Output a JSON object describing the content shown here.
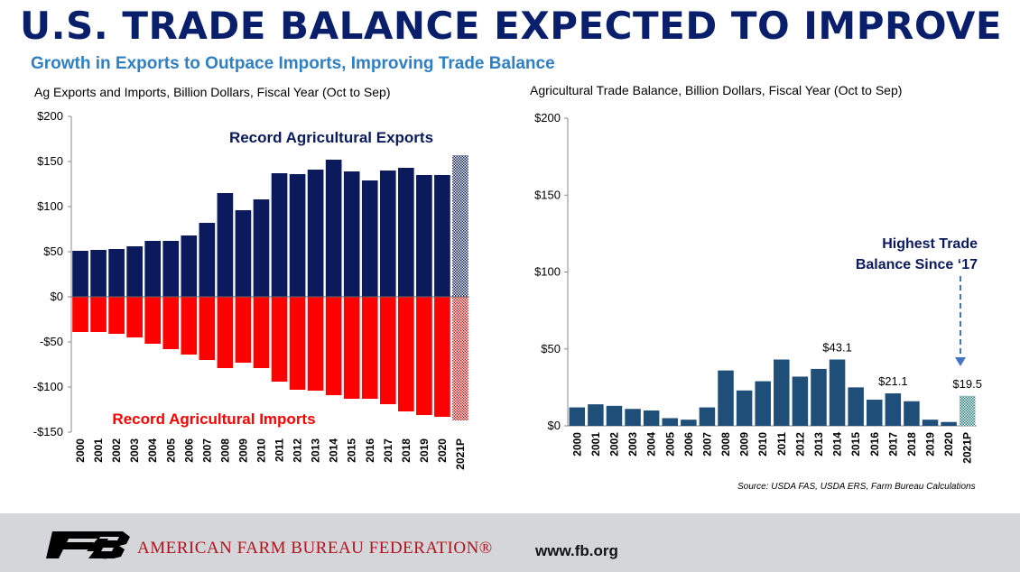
{
  "header": {
    "title": "U.S. TRADE BALANCE EXPECTED TO IMPROVE",
    "subtitle": "Growth in Exports to Outpace Imports, Improving Trade Balance"
  },
  "chart_data": [
    {
      "type": "bar",
      "title": "Ag Exports and Imports, Billion Dollars, Fiscal Year (Oct to Sep)",
      "categories": [
        "2000",
        "2001",
        "2002",
        "2003",
        "2004",
        "2005",
        "2006",
        "2007",
        "2008",
        "2009",
        "2010",
        "2011",
        "2012",
        "2013",
        "2014",
        "2015",
        "2016",
        "2017",
        "2018",
        "2019",
        "2020",
        "2021P"
      ],
      "series": [
        {
          "name": "Record Agricultural Exports",
          "color": "#0a1a5c",
          "values": [
            51,
            52,
            53,
            56,
            62,
            62,
            68,
            82,
            115,
            96,
            108,
            137,
            136,
            141,
            152,
            139,
            129,
            140,
            143,
            135,
            135,
            157
          ]
        },
        {
          "name": "Record Agricultural Imports",
          "color": "#ff0000",
          "values": [
            -39,
            -39,
            -41,
            -45,
            -52,
            -58,
            -64,
            -70,
            -79,
            -73,
            -79,
            -94,
            -103,
            -104,
            -109,
            -113,
            -113,
            -119,
            -127,
            -131,
            -133,
            -137
          ]
        }
      ],
      "projected_category": "2021P",
      "ylim": [
        -150,
        200
      ],
      "yticks": [
        200,
        150,
        100,
        50,
        0,
        -50,
        -100,
        -150
      ],
      "ytick_labels": [
        "$200",
        "$150",
        "$100",
        "$50",
        "$0",
        "-$50",
        "-$100",
        "-$150"
      ],
      "grid": false
    },
    {
      "type": "bar",
      "title": "Agricultural Trade Balance, Billion Dollars, Fiscal Year (Oct to Sep)",
      "categories": [
        "2000",
        "2001",
        "2002",
        "2003",
        "2004",
        "2005",
        "2006",
        "2007",
        "2008",
        "2009",
        "2010",
        "2011",
        "2012",
        "2013",
        "2014",
        "2015",
        "2016",
        "2017",
        "2018",
        "2019",
        "2020",
        "2021P"
      ],
      "values": [
        12,
        14,
        13,
        11,
        10,
        5,
        4,
        12,
        36,
        23,
        29,
        43.1,
        32,
        37,
        43.1,
        25,
        17,
        21.1,
        16,
        4,
        2.5,
        19.5
      ],
      "color": "#1f4e79",
      "projected_category": "2021P",
      "ylim": [
        0,
        200
      ],
      "yticks": [
        200,
        150,
        100,
        50,
        0
      ],
      "ytick_labels": [
        "$200",
        "$150",
        "$100",
        "$50",
        "$0"
      ],
      "data_labels": [
        {
          "category": "2014",
          "text": "$43.1"
        },
        {
          "category": "2017",
          "text": "$21.1"
        },
        {
          "category": "2021P",
          "text": "$19.5"
        }
      ],
      "annotation": "Highest Trade Balance Since ‘17",
      "grid": false
    }
  ],
  "labels": {
    "annotation_line1": "Highest Trade",
    "annotation_line2": "Balance Since ‘17"
  },
  "source": "Source: USDA FAS, USDA ERS, Farm Bureau Calculations",
  "footer": {
    "org_name": "AMERICAN FARM BUREAU FEDERATION®",
    "logo_text": "FB",
    "website": "www.fb.org",
    "logo_color": "#000000",
    "accent_color": "#b3121c"
  }
}
